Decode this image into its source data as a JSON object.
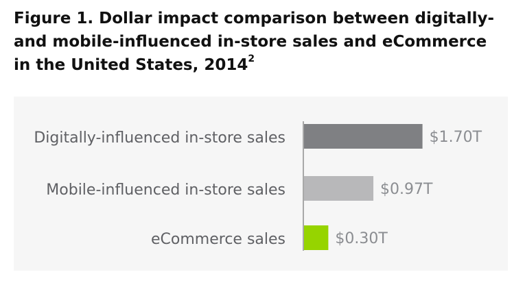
{
  "title": "Figure 1. Dollar impact comparison between digitally- and mobile-influenced in-store sales and eCommerce in the United States, 2014",
  "title_footnote": "2",
  "chart_data": {
    "type": "bar",
    "orientation": "horizontal",
    "categories": [
      "Digitally-influenced in-store sales",
      "Mobile-influenced in-store sales",
      "eCommerce sales"
    ],
    "values": [
      1.7,
      0.97,
      0.3
    ],
    "value_labels": [
      "$1.70T",
      "$0.97T",
      "$0.30T"
    ],
    "unit": "trillion USD",
    "colors": [
      "#7f8083",
      "#b8b8ba",
      "#96d400"
    ],
    "grid": false,
    "legend": "none"
  }
}
